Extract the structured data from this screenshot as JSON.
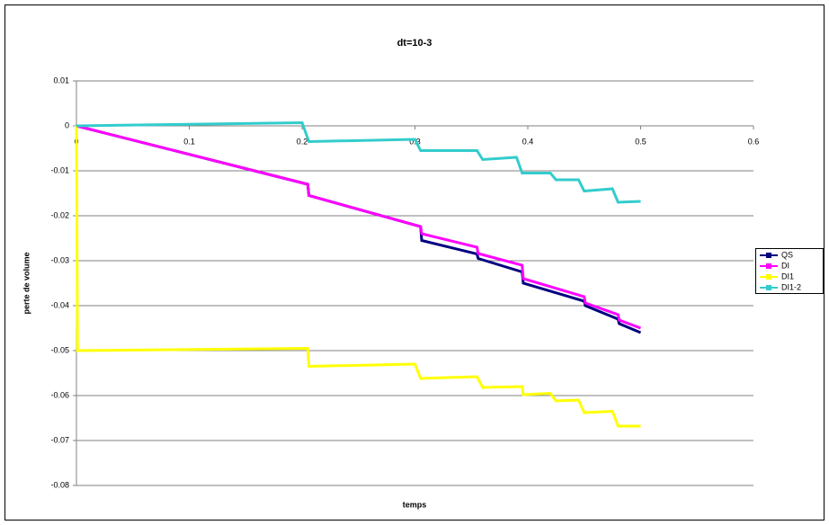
{
  "chart_data": {
    "type": "line",
    "title": "dt=10-3",
    "x_label": "temps",
    "y_label": "perte de volume",
    "xlim": [
      0,
      0.6
    ],
    "xticks": [
      0,
      0.1,
      0.2,
      0.3,
      0.4,
      0.5,
      0.6
    ],
    "ylim": [
      -0.08,
      0.01
    ],
    "yticks": [
      0.01,
      0,
      -0.01,
      -0.02,
      -0.03,
      -0.04,
      -0.05,
      -0.06,
      -0.07,
      -0.08
    ],
    "grid": true,
    "legend": "right",
    "series": [
      {
        "name": "QS",
        "color": "#000080",
        "x": [
          0,
          0.205,
          0.206,
          0.305,
          0.306,
          0.355,
          0.356,
          0.395,
          0.396,
          0.45,
          0.451,
          0.48,
          0.481,
          0.5
        ],
        "values": [
          0,
          -0.013,
          -0.0155,
          -0.0224,
          -0.0255,
          -0.0285,
          -0.0295,
          -0.0325,
          -0.035,
          -0.039,
          -0.04,
          -0.043,
          -0.044,
          -0.046
        ]
      },
      {
        "name": "DI",
        "color": "#ff00ff",
        "x": [
          0,
          0.205,
          0.206,
          0.305,
          0.306,
          0.355,
          0.356,
          0.395,
          0.396,
          0.45,
          0.451,
          0.48,
          0.481,
          0.5
        ],
        "values": [
          0,
          -0.013,
          -0.0155,
          -0.0224,
          -0.024,
          -0.027,
          -0.0284,
          -0.031,
          -0.034,
          -0.038,
          -0.0394,
          -0.042,
          -0.0432,
          -0.045
        ]
      },
      {
        "name": "DI1",
        "color": "#ffff00",
        "x": [
          0,
          0.001,
          0.205,
          0.206,
          0.3,
          0.305,
          0.355,
          0.36,
          0.395,
          0.396,
          0.42,
          0.425,
          0.445,
          0.45,
          0.475,
          0.48,
          0.5
        ],
        "values": [
          0,
          -0.05,
          -0.0495,
          -0.0535,
          -0.053,
          -0.0562,
          -0.0558,
          -0.0582,
          -0.058,
          -0.0598,
          -0.0595,
          -0.0612,
          -0.061,
          -0.0638,
          -0.0635,
          -0.0668,
          -0.0668
        ]
      },
      {
        "name": "DI1-2",
        "color": "#33cccc",
        "x": [
          0,
          0.2,
          0.206,
          0.3,
          0.305,
          0.355,
          0.36,
          0.39,
          0.395,
          0.42,
          0.425,
          0.445,
          0.45,
          0.475,
          0.48,
          0.5
        ],
        "values": [
          0,
          0.0007,
          -0.0035,
          -0.003,
          -0.0055,
          -0.0055,
          -0.0075,
          -0.007,
          -0.0105,
          -0.0105,
          -0.012,
          -0.012,
          -0.0145,
          -0.014,
          -0.017,
          -0.0168
        ]
      }
    ]
  }
}
